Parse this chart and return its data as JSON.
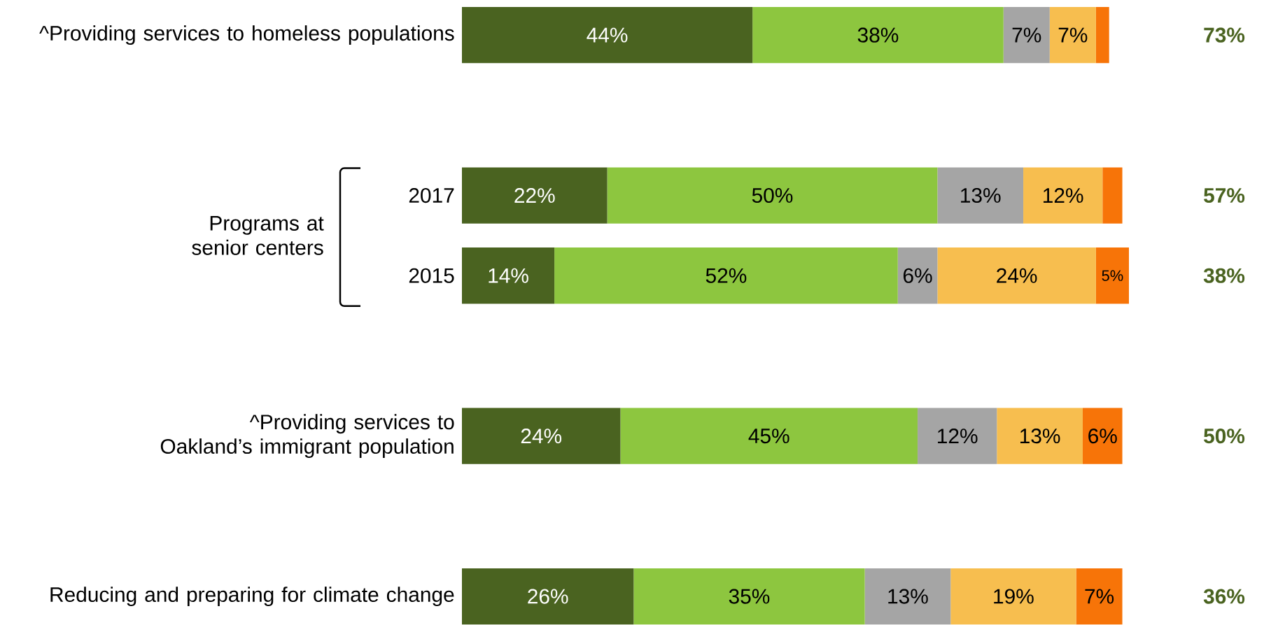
{
  "chart_data": {
    "type": "bar",
    "orientation": "horizontal",
    "stacked": true,
    "categories": [
      "^Providing services to homeless populations",
      null,
      "2017",
      "2015",
      null,
      "^Providing services to Oakland’s immigrant population",
      null,
      "Reducing and preparing for climate change"
    ],
    "series": [
      {
        "color": "#4a6320",
        "values": [
          44,
          null,
          22,
          14,
          null,
          24,
          null,
          26
        ],
        "value_labels": [
          "44%",
          null,
          "22%",
          "14%",
          null,
          "24%",
          null,
          "26%"
        ]
      },
      {
        "color": "#8dc63f",
        "values": [
          38,
          null,
          50,
          52,
          null,
          45,
          null,
          35
        ],
        "value_labels": [
          "38%",
          null,
          "50%",
          "52%",
          null,
          "45%",
          null,
          "35%"
        ]
      },
      {
        "color": "#a5a5a5",
        "values": [
          7,
          null,
          13,
          6,
          null,
          12,
          null,
          13
        ],
        "value_labels": [
          "7%",
          null,
          "13%",
          "6%",
          null,
          "12%",
          null,
          "13%"
        ]
      },
      {
        "color": "#f7be4f",
        "values": [
          7,
          null,
          12,
          24,
          null,
          13,
          null,
          19
        ],
        "value_labels": [
          "7%",
          null,
          "12%",
          "24%",
          null,
          "13%",
          null,
          "19%"
        ]
      },
      {
        "color": "#f77408",
        "values": [
          2,
          null,
          3,
          5,
          null,
          6,
          null,
          7
        ],
        "value_labels": [
          null,
          null,
          null,
          "5%",
          null,
          "6%",
          null,
          "7%"
        ]
      }
    ],
    "annotations": [
      "Programs at senior centers",
      "73%",
      "57%",
      "38%",
      "50%",
      "36%"
    ]
  }
}
